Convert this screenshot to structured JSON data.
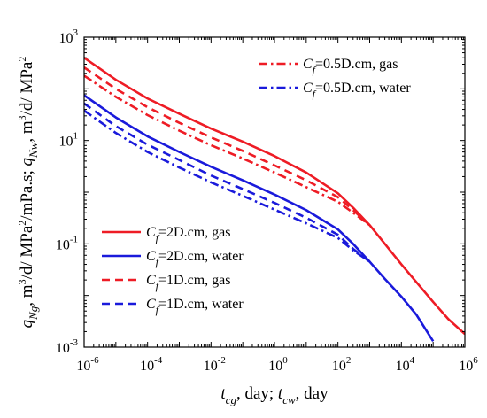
{
  "chart_data": {
    "type": "line",
    "xlabel": "t_cg, day; t_cw, day",
    "ylabel": "q_Ng, m3/d/ MPa2/mPa.s; q_Nw, m3/d/ MPa2",
    "xscale": "log",
    "yscale": "log",
    "xlim": [
      1e-06,
      1000000.0
    ],
    "ylim": [
      0.001,
      1000.0
    ],
    "x_ticks": [
      {
        "base": "10",
        "exp": "-6"
      },
      {
        "base": "10",
        "exp": "-4"
      },
      {
        "base": "10",
        "exp": "-2"
      },
      {
        "base": "10",
        "exp": "0"
      },
      {
        "base": "10",
        "exp": "2"
      },
      {
        "base": "10",
        "exp": "4"
      },
      {
        "base": "10",
        "exp": "6"
      }
    ],
    "y_ticks": [
      {
        "base": "10",
        "exp": "-3"
      },
      {
        "base": "10",
        "exp": "-1"
      },
      {
        "base": "10",
        "exp": "1"
      },
      {
        "base": "10",
        "exp": "3"
      }
    ],
    "grid": false,
    "legends": [
      {
        "placement": "upper-right",
        "entries": [
          {
            "series": 4,
            "label_sym": "C",
            "label_sub": "f",
            "label_rest": "=0.5D.cm, gas"
          },
          {
            "series": 5,
            "label_sym": "C",
            "label_sub": "f",
            "label_rest": "=0.5D.cm, water"
          }
        ]
      },
      {
        "placement": "lower-left",
        "entries": [
          {
            "series": 0,
            "label_sym": "C",
            "label_sub": "f",
            "label_rest": "=2D.cm, gas"
          },
          {
            "series": 1,
            "label_sym": "C",
            "label_sub": "f",
            "label_rest": "=2D.cm, water"
          },
          {
            "series": 2,
            "label_sym": "C",
            "label_sub": "f",
            "label_rest": "=1D.cm, gas"
          },
          {
            "series": 3,
            "label_sym": "C",
            "label_sub": "f",
            "label_rest": "=1D.cm, water"
          }
        ]
      }
    ],
    "series": [
      {
        "name": "Cf=2D.cm, gas",
        "color": "#ee1c25",
        "dash": "solid",
        "x": [
          1e-06,
          1e-05,
          0.0001,
          0.001,
          0.01,
          0.1,
          1,
          10,
          100,
          300,
          1000,
          3000,
          10000,
          30000,
          100000,
          300000,
          1000000
        ],
        "y": [
          400,
          150,
          65,
          33,
          17,
          9.5,
          5,
          2.4,
          0.95,
          0.5,
          0.23,
          0.1,
          0.04,
          0.018,
          0.0075,
          0.0035,
          0.0018
        ]
      },
      {
        "name": "Cf=2D.cm, water",
        "color": "#1a1adb",
        "dash": "solid",
        "x": [
          1e-06,
          1e-05,
          0.0001,
          0.001,
          0.01,
          0.1,
          1,
          10,
          100,
          300,
          1000,
          3000,
          10000,
          30000,
          100000
        ],
        "y": [
          75,
          28,
          12,
          6,
          3.1,
          1.7,
          0.9,
          0.45,
          0.19,
          0.1,
          0.045,
          0.021,
          0.0095,
          0.0042,
          0.0013
        ]
      },
      {
        "name": "Cf=1D.cm, gas",
        "color": "#ee1c25",
        "dash": "dashed",
        "x": [
          1e-06,
          1e-05,
          0.0001,
          0.001,
          0.01,
          0.1,
          1,
          10,
          100,
          300,
          1000
        ],
        "y": [
          260,
          100,
          44,
          22,
          11.5,
          6.3,
          3.3,
          1.7,
          0.8,
          0.45,
          0.23
        ]
      },
      {
        "name": "Cf=1D.cm, water",
        "color": "#1a1adb",
        "dash": "dashed",
        "x": [
          1e-06,
          1e-05,
          0.0001,
          0.001,
          0.01,
          0.1,
          1,
          10,
          100,
          300,
          1000
        ],
        "y": [
          52,
          19,
          8.3,
          4.2,
          2.1,
          1.15,
          0.62,
          0.32,
          0.15,
          0.08,
          0.045
        ]
      },
      {
        "name": "Cf=0.5D.cm, gas",
        "color": "#ee1c25",
        "dash": "dashdot",
        "x": [
          1e-06,
          1e-05,
          0.0001,
          0.001,
          0.01,
          0.1,
          1,
          10,
          100,
          300,
          1000
        ],
        "y": [
          180,
          70,
          31,
          15.5,
          8.1,
          4.5,
          2.4,
          1.25,
          0.65,
          0.4,
          0.23
        ]
      },
      {
        "name": "Cf=0.5D.cm, water",
        "color": "#1a1adb",
        "dash": "dashdot",
        "x": [
          1e-06,
          1e-05,
          0.0001,
          0.001,
          0.01,
          0.1,
          1,
          10,
          100,
          300,
          1000
        ],
        "y": [
          38,
          14,
          6,
          3,
          1.55,
          0.85,
          0.46,
          0.25,
          0.13,
          0.075,
          0.045
        ]
      }
    ]
  }
}
